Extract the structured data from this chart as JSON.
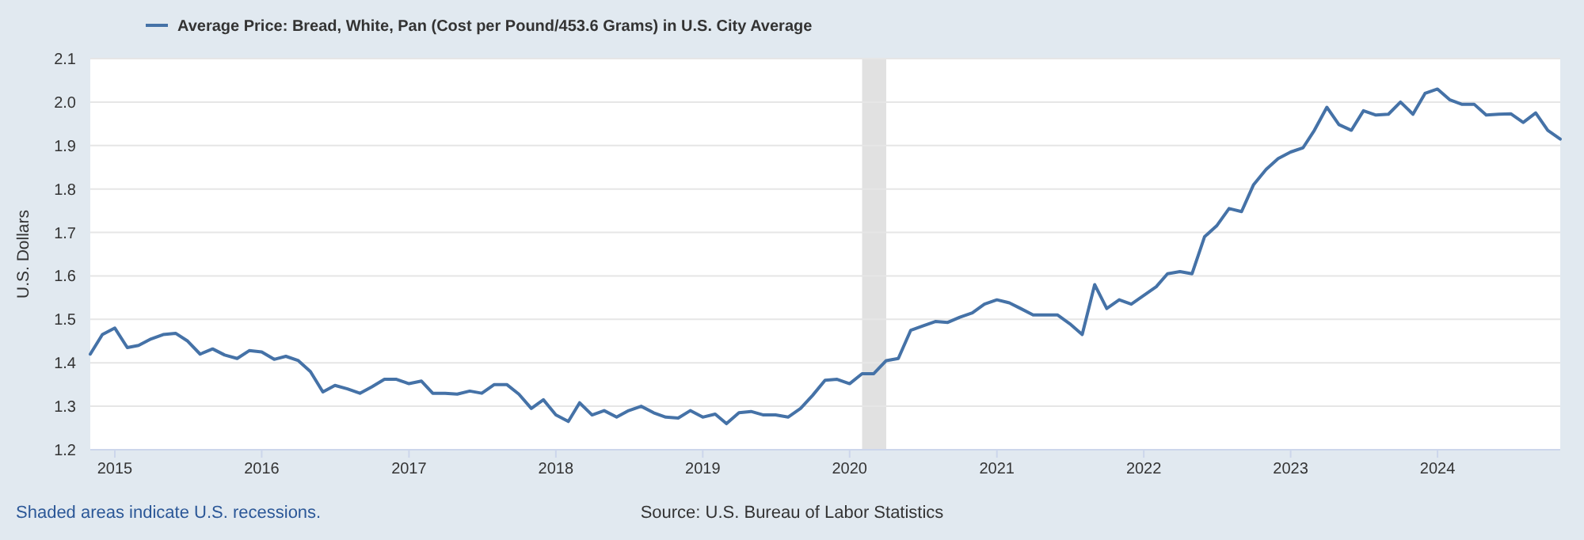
{
  "chart_data": {
    "type": "line",
    "ylabel": "U.S. Dollars",
    "annotations": [
      "Shaded areas indicate U.S. recessions.",
      "Source: U.S. Bureau of Labor Statistics"
    ],
    "x": [
      "2014-11",
      "2014-12",
      "2015-01",
      "2015-02",
      "2015-03",
      "2015-04",
      "2015-05",
      "2015-06",
      "2015-07",
      "2015-08",
      "2015-09",
      "2015-10",
      "2015-11",
      "2015-12",
      "2016-01",
      "2016-02",
      "2016-03",
      "2016-04",
      "2016-05",
      "2016-06",
      "2016-07",
      "2016-08",
      "2016-09",
      "2016-10",
      "2016-11",
      "2016-12",
      "2017-01",
      "2017-02",
      "2017-03",
      "2017-04",
      "2017-05",
      "2017-06",
      "2017-07",
      "2017-08",
      "2017-09",
      "2017-10",
      "2017-11",
      "2017-12",
      "2018-01",
      "2018-02",
      "2018-03",
      "2018-04",
      "2018-05",
      "2018-06",
      "2018-07",
      "2018-08",
      "2018-09",
      "2018-10",
      "2018-11",
      "2018-12",
      "2019-01",
      "2019-02",
      "2019-03",
      "2019-04",
      "2019-05",
      "2019-06",
      "2019-07",
      "2019-08",
      "2019-09",
      "2019-10",
      "2019-11",
      "2019-12",
      "2020-01",
      "2020-02",
      "2020-03",
      "2020-04",
      "2020-05",
      "2020-06",
      "2020-07",
      "2020-08",
      "2020-09",
      "2020-10",
      "2020-11",
      "2020-12",
      "2021-01",
      "2021-02",
      "2021-03",
      "2021-04",
      "2021-05",
      "2021-06",
      "2021-07",
      "2021-08",
      "2021-09",
      "2021-10",
      "2021-11",
      "2021-12",
      "2022-01",
      "2022-02",
      "2022-03",
      "2022-04",
      "2022-05",
      "2022-06",
      "2022-07",
      "2022-08",
      "2022-09",
      "2022-10",
      "2022-11",
      "2022-12",
      "2023-01",
      "2023-02",
      "2023-03",
      "2023-04",
      "2023-05",
      "2023-06",
      "2023-07",
      "2023-08",
      "2023-09",
      "2023-10",
      "2023-11",
      "2023-12",
      "2024-01",
      "2024-02",
      "2024-03",
      "2024-04",
      "2024-05",
      "2024-06",
      "2024-07",
      "2024-08",
      "2024-09",
      "2024-10",
      "2024-11"
    ],
    "xlim": [
      "2014-11",
      "2024-11"
    ],
    "xticks": [
      {
        "value": "2015-01",
        "label": "2015"
      },
      {
        "value": "2016-01",
        "label": "2016"
      },
      {
        "value": "2017-01",
        "label": "2017"
      },
      {
        "value": "2018-01",
        "label": "2018"
      },
      {
        "value": "2019-01",
        "label": "2019"
      },
      {
        "value": "2020-01",
        "label": "2020"
      },
      {
        "value": "2021-01",
        "label": "2021"
      },
      {
        "value": "2022-01",
        "label": "2022"
      },
      {
        "value": "2023-01",
        "label": "2023"
      },
      {
        "value": "2024-01",
        "label": "2024"
      }
    ],
    "ylim": [
      1.2,
      2.1
    ],
    "yticks": [
      1.2,
      1.3,
      1.4,
      1.5,
      1.6,
      1.7,
      1.8,
      1.9,
      {
        "value": 2.0,
        "label": "2.0"
      },
      2.1
    ],
    "grid": "y",
    "legend": "top left",
    "line_style": "solid",
    "marker": "none",
    "bands": [
      {
        "axis": "x",
        "from": "2020-02",
        "to": "2020-04",
        "color": "#e1e1e1"
      }
    ],
    "series": [
      {
        "name": "Average Price: Bread, White, Pan (Cost per Pound/453.6 Grams) in U.S. City Average",
        "color": "#4572a7",
        "values": [
          1.42,
          1.465,
          1.48,
          1.435,
          1.44,
          1.455,
          1.465,
          1.468,
          1.45,
          1.42,
          1.432,
          1.418,
          1.41,
          1.428,
          1.425,
          1.408,
          1.415,
          1.405,
          1.38,
          1.333,
          1.348,
          1.34,
          1.33,
          1.345,
          1.362,
          1.362,
          1.352,
          1.358,
          1.33,
          1.33,
          1.328,
          1.335,
          1.33,
          1.35,
          1.35,
          1.328,
          1.295,
          1.315,
          1.28,
          1.265,
          1.308,
          1.28,
          1.29,
          1.275,
          1.29,
          1.3,
          1.285,
          1.275,
          1.273,
          1.29,
          1.275,
          1.282,
          1.26,
          1.285,
          1.288,
          1.28,
          1.28,
          1.275,
          1.295,
          1.325,
          1.36,
          1.362,
          1.352,
          1.375,
          1.375,
          1.405,
          1.41,
          1.475,
          1.485,
          1.495,
          1.493,
          1.505,
          1.515,
          1.535,
          1.545,
          1.538,
          1.525,
          1.51,
          1.51,
          1.51,
          1.49,
          1.465,
          1.58,
          1.525,
          1.545,
          1.535,
          1.555,
          1.575,
          1.605,
          1.61,
          1.605,
          1.69,
          1.715,
          1.755,
          1.748,
          1.81,
          1.845,
          1.87,
          1.885,
          1.895,
          1.935,
          1.988,
          1.948,
          1.935,
          1.98,
          1.97,
          1.972,
          2.0,
          1.972,
          2.02,
          2.03,
          2.005,
          1.995,
          1.995,
          1.97,
          1.972,
          1.973,
          1.953,
          1.975,
          1.935,
          1.915
        ]
      }
    ]
  }
}
